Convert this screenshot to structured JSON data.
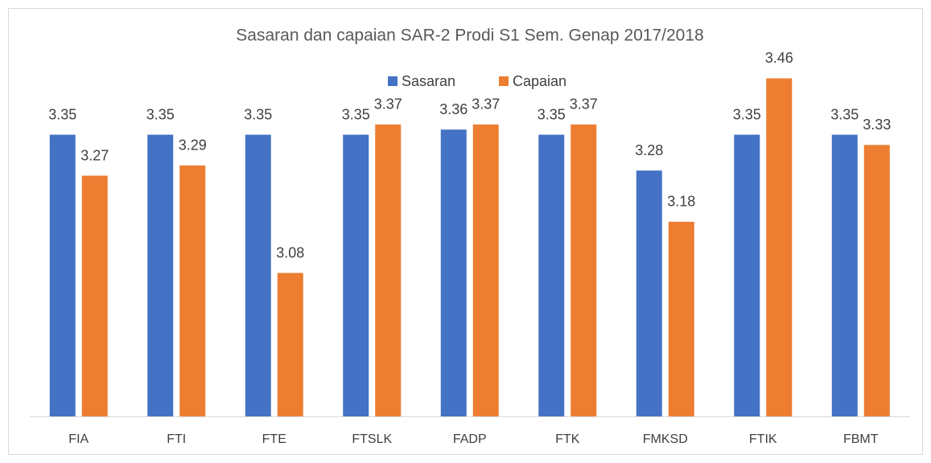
{
  "chart_data": {
    "type": "bar",
    "title": "Sasaran dan capaian SAR-2 Prodi S1 Sem. Genap 2017/2018",
    "categories": [
      "FIA",
      "FTI",
      "FTE",
      "FTSLK",
      "FADP",
      "FTK",
      "FMKSD",
      "FTIK",
      "FBMT"
    ],
    "series": [
      {
        "name": "Sasaran",
        "color": "#4472c4",
        "values": [
          3.35,
          3.35,
          3.35,
          3.35,
          3.36,
          3.35,
          3.28,
          3.35,
          3.35
        ]
      },
      {
        "name": "Capaian",
        "color": "#ed7d31",
        "values": [
          3.27,
          3.29,
          3.08,
          3.37,
          3.37,
          3.37,
          3.18,
          3.46,
          3.33
        ]
      }
    ],
    "ylim": [
      2.8,
      3.5
    ],
    "legend": "top",
    "data_labels": true
  }
}
